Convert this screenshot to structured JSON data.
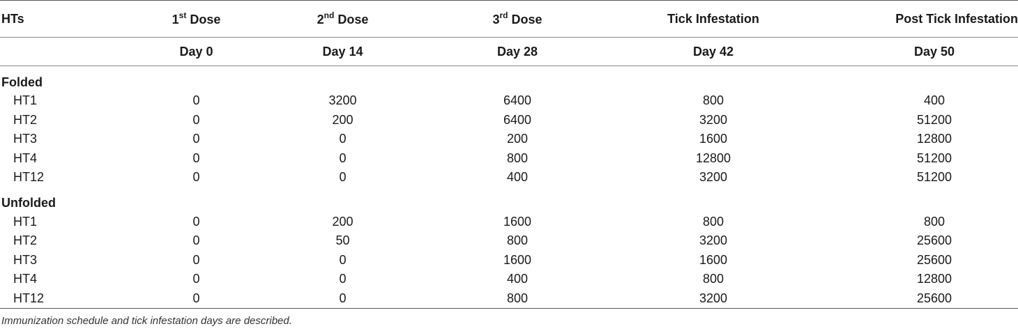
{
  "table": {
    "header_row1": {
      "hts": "HTs",
      "doses": [
        {
          "num": "1",
          "sup": "st",
          "rest": " Dose"
        },
        {
          "num": "2",
          "sup": "nd",
          "rest": " Dose"
        },
        {
          "num": "3",
          "sup": "rd",
          "rest": " Dose"
        }
      ],
      "tick_infestation": "Tick Infestation",
      "post_tick_infestation": "Post Tick Infestation"
    },
    "header_row2": [
      "Day 0",
      "Day 14",
      "Day 28",
      "Day 42",
      "Day 50"
    ],
    "groups": [
      {
        "name": "Folded",
        "rows": [
          {
            "label": "HT1",
            "values": [
              "0",
              "3200",
              "6400",
              "800",
              "400"
            ]
          },
          {
            "label": "HT2",
            "values": [
              "0",
              "200",
              "6400",
              "3200",
              "51200"
            ]
          },
          {
            "label": "HT3",
            "values": [
              "0",
              "0",
              "200",
              "1600",
              "12800"
            ]
          },
          {
            "label": "HT4",
            "values": [
              "0",
              "0",
              "800",
              "12800",
              "51200"
            ]
          },
          {
            "label": "HT12",
            "values": [
              "0",
              "0",
              "400",
              "3200",
              "51200"
            ]
          }
        ]
      },
      {
        "name": "Unfolded",
        "rows": [
          {
            "label": "HT1",
            "values": [
              "0",
              "200",
              "1600",
              "800",
              "800"
            ]
          },
          {
            "label": "HT2",
            "values": [
              "0",
              "50",
              "800",
              "3200",
              "25600"
            ]
          },
          {
            "label": "HT3",
            "values": [
              "0",
              "0",
              "1600",
              "1600",
              "25600"
            ]
          },
          {
            "label": "HT4",
            "values": [
              "0",
              "0",
              "400",
              "800",
              "12800"
            ]
          },
          {
            "label": "HT12",
            "values": [
              "0",
              "0",
              "800",
              "3200",
              "25600"
            ]
          }
        ]
      }
    ]
  },
  "footnote": "Immunization schedule and tick infestation days are described."
}
